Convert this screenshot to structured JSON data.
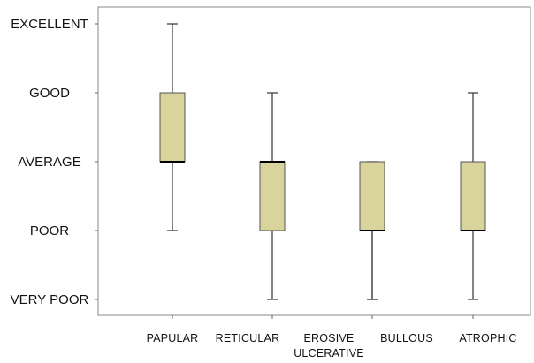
{
  "chart_data": {
    "type": "box",
    "title": "",
    "xlabel": "",
    "ylabel": "",
    "y_levels": [
      "VERY POOR",
      "POOR",
      "AVERAGE",
      "GOOD",
      "EXCELLENT"
    ],
    "ylim": [
      1,
      5
    ],
    "grid": false,
    "box_color": "#d8d49c",
    "box_edge_color": "#555555",
    "median_color": "#000000",
    "categories": [
      {
        "label_lines": [
          "PAPULAR"
        ],
        "min": 2,
        "q1": 3,
        "median": 3,
        "q3": 4,
        "max": 5
      },
      {
        "label_lines": [
          "RETICULAR"
        ],
        "min": 1,
        "q1": 2,
        "median": 3,
        "q3": 3,
        "max": 4
      },
      {
        "label_lines": [
          "EROSIVE",
          "ULCERATIVE"
        ],
        "min": 1,
        "q1": 2,
        "median": 2,
        "q3": 3,
        "max": 3
      },
      {
        "label_lines": [
          "BULLOUS"
        ],
        "min": 1,
        "q1": 2,
        "median": 2,
        "q3": 3,
        "max": 3
      },
      {
        "label_lines": [
          "ATROPHIC"
        ],
        "min": 1,
        "q1": 2,
        "median": 2,
        "q3": 3,
        "max": 4
      }
    ]
  }
}
